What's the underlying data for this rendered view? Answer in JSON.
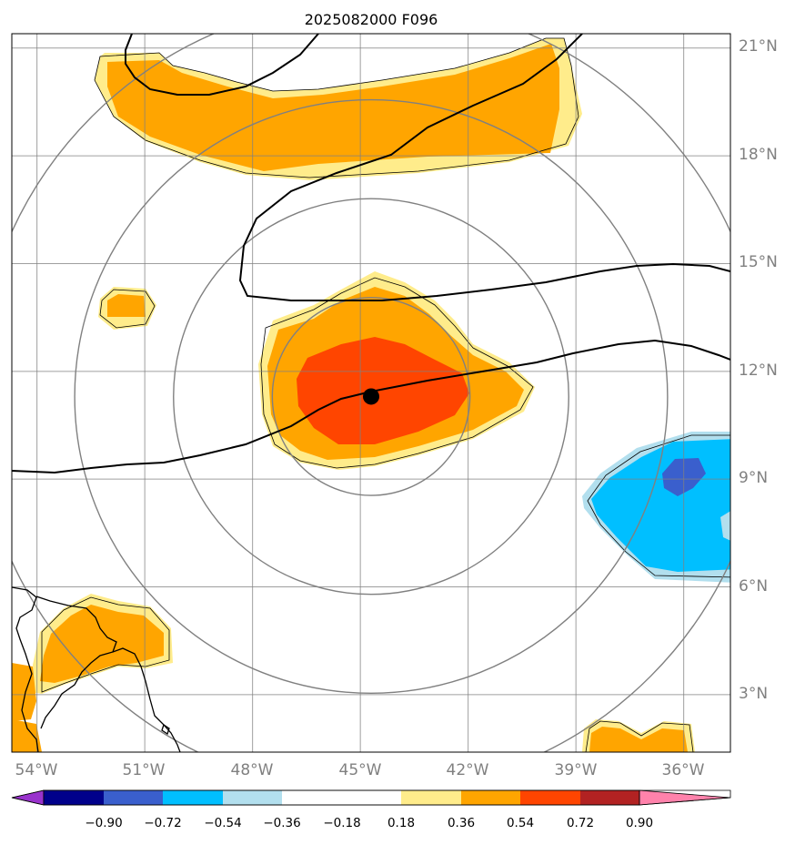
{
  "title": "2025082000 F096",
  "longitude_labels": [
    "54°W",
    "51°W",
    "48°W",
    "45°W",
    "42°W",
    "39°W",
    "36°W"
  ],
  "latitude_labels": [
    "21°N",
    "18°N",
    "15°N",
    "12°N",
    "9°N",
    "6°N",
    "3°N"
  ],
  "map_extent": {
    "lon_min": -54.7,
    "lon_max": -34.7,
    "lat_min": 1.4,
    "lat_max": 21.4
  },
  "storm_center": {
    "lon": -44.7,
    "lat": 11.3
  },
  "range_rings_deg": [
    2.75,
    5.5,
    8.25,
    11
  ],
  "colorbar": {
    "ticks": [
      "−0.90",
      "−0.72",
      "−0.54",
      "−0.36",
      "−0.18",
      "0.18",
      "0.36",
      "0.54",
      "0.72",
      "0.90"
    ],
    "colors": {
      "under": "#9932cc",
      "bins": [
        "#00008b",
        "#3a5fcd",
        "#00bfff",
        "#b2dfee",
        "#ffffff",
        "#ffec8b",
        "#ffa500",
        "#ff4500",
        "#b22222"
      ],
      "over": "#ff82ab"
    }
  },
  "colors": {
    "light_yellow": "#ffec8b",
    "orange": "#ffa500",
    "red_orange": "#ff4500",
    "deep_sky_blue": "#00bfff",
    "light_blue": "#b2dfee",
    "royal_blue": "#3a5fcd",
    "grid": "#808080"
  }
}
